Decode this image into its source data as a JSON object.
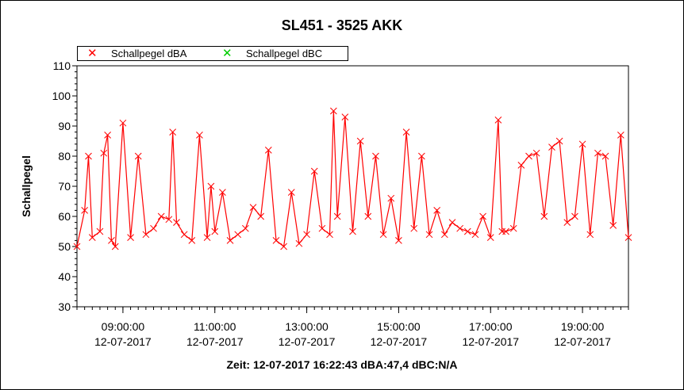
{
  "window": {
    "status": "Zeit: 12-07-2017 16:22:43 dBA:47,4 dBC:N/A"
  },
  "colors": {
    "dba": "#ff0000",
    "dbc": "#00cc00",
    "axis": "#000000"
  },
  "chart_data": {
    "type": "scatter",
    "title": "SL451 - 3525 AKK",
    "xlabel": "",
    "ylabel": "Schallpegel",
    "ylim": [
      30,
      110
    ],
    "yticks": [
      30,
      40,
      50,
      60,
      70,
      80,
      90,
      100,
      110
    ],
    "xlim": [
      "2017-07-12 08:00:00",
      "2017-07-12 20:00:00"
    ],
    "xticks": [
      {
        "time": "2017-07-12 09:00:00",
        "label": "09:00:00",
        "date": "12-07-2017"
      },
      {
        "time": "2017-07-12 11:00:00",
        "label": "11:00:00",
        "date": "12-07-2017"
      },
      {
        "time": "2017-07-12 13:00:00",
        "label": "13:00:00",
        "date": "12-07-2017"
      },
      {
        "time": "2017-07-12 15:00:00",
        "label": "15:00:00",
        "date": "12-07-2017"
      },
      {
        "time": "2017-07-12 17:00:00",
        "label": "17:00:00",
        "date": "12-07-2017"
      },
      {
        "time": "2017-07-12 19:00:00",
        "label": "19:00:00",
        "date": "12-07-2017"
      }
    ],
    "legend_position": "top-left",
    "grid": false,
    "series": [
      {
        "name": "Schallpegel dBA",
        "color": "#ff0000",
        "x": [
          "08:00",
          "08:10",
          "08:15",
          "08:20",
          "08:30",
          "08:35",
          "08:40",
          "08:45",
          "08:50",
          "09:00",
          "09:10",
          "09:20",
          "09:30",
          "09:40",
          "09:50",
          "10:00",
          "10:05",
          "10:10",
          "10:20",
          "10:30",
          "10:40",
          "10:50",
          "10:55",
          "11:00",
          "11:10",
          "11:20",
          "11:30",
          "11:40",
          "11:50",
          "12:00",
          "12:10",
          "12:20",
          "12:30",
          "12:40",
          "12:50",
          "13:00",
          "13:10",
          "13:20",
          "13:30",
          "13:35",
          "13:40",
          "13:50",
          "14:00",
          "14:10",
          "14:20",
          "14:30",
          "14:40",
          "14:50",
          "15:00",
          "15:10",
          "15:20",
          "15:30",
          "15:40",
          "15:50",
          "16:00",
          "16:10",
          "16:20",
          "16:30",
          "16:40",
          "16:50",
          "17:00",
          "17:10",
          "17:15",
          "17:20",
          "17:30",
          "17:40",
          "17:50",
          "18:00",
          "18:10",
          "18:20",
          "18:30",
          "18:40",
          "18:50",
          "19:00",
          "19:10",
          "19:20",
          "19:30",
          "19:40",
          "19:50",
          "20:00"
        ],
        "y": [
          50,
          62,
          80,
          53,
          55,
          81,
          87,
          52,
          50,
          91,
          53,
          80,
          54,
          56,
          60,
          59,
          88,
          58,
          54,
          52,
          87,
          53,
          70,
          55,
          68,
          52,
          54,
          56,
          63,
          60,
          82,
          52,
          50,
          68,
          51,
          54,
          75,
          56,
          54,
          95,
          60,
          93,
          55,
          85,
          60,
          80,
          54,
          66,
          52,
          88,
          56,
          80,
          54,
          62,
          54,
          58,
          56,
          55,
          54,
          60,
          53,
          92,
          55,
          55,
          56,
          77,
          80,
          81,
          60,
          83,
          85,
          58,
          60,
          84,
          54,
          81,
          80,
          57,
          87,
          53
        ]
      },
      {
        "name": "Schallpegel dBC",
        "color": "#00cc00",
        "x": [],
        "y": []
      }
    ]
  }
}
